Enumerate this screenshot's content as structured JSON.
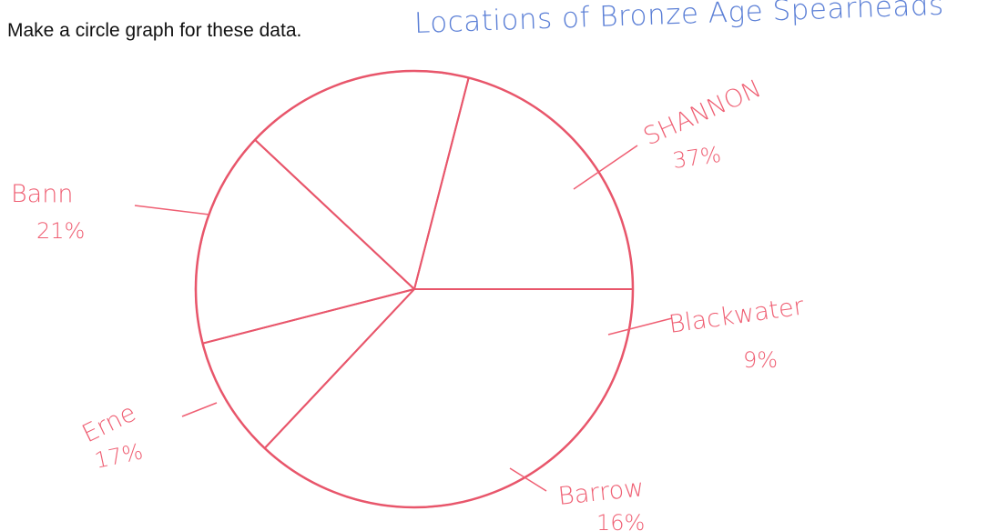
{
  "instruction": "Make a circle graph for these data.",
  "chart_data": {
    "type": "pie",
    "title": "Locations of Bronze Age Spearheads",
    "slices": [
      {
        "label": "SHANNON",
        "value": 37,
        "value_label": "37%"
      },
      {
        "label": "Blackwater",
        "value": 9,
        "value_label": "9%"
      },
      {
        "label": "Barrow",
        "value": 16,
        "value_label": "16%"
      },
      {
        "label": "Erne",
        "value": 17,
        "value_label": "17%"
      },
      {
        "label": "Bann",
        "value": 21,
        "value_label": "21%"
      }
    ],
    "start_angle_deg": 0,
    "direction": "clockwise",
    "style": "hand-drawn outline, no fill",
    "stroke_color": "#e8566b",
    "label_color": "#ef5f73",
    "title_color": "#5b7fd6"
  }
}
